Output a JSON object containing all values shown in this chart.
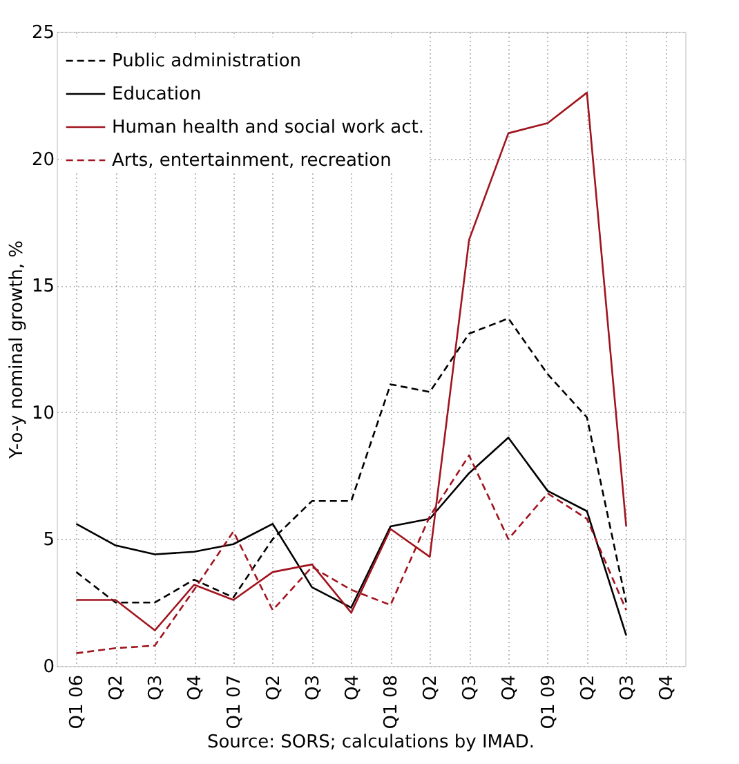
{
  "chart_data": {
    "type": "line",
    "ylabel": "Y-o-y nominal growth, %",
    "annotations": [
      "Source: SORS; calculations by IMAD."
    ],
    "categories": [
      "Q1 06",
      "Q2",
      "Q3",
      "Q4",
      "Q1 07",
      "Q2",
      "Q3",
      "Q4",
      "Q1 08",
      "Q2",
      "Q3",
      "Q4",
      "Q1 09",
      "Q2",
      "Q3",
      "Q4"
    ],
    "ylim": [
      0,
      25
    ],
    "yticks": [
      0,
      5,
      10,
      15,
      20,
      25
    ],
    "grid": true,
    "legend": "top left",
    "marker": "none",
    "series": [
      {
        "name": "Public administration",
        "color": "#000000",
        "line_style": "dashed",
        "values": [
          3.7,
          2.5,
          2.5,
          3.4,
          2.7,
          5.0,
          6.5,
          6.5,
          11.1,
          10.8,
          13.1,
          13.7,
          11.5,
          9.8,
          2.5,
          null
        ]
      },
      {
        "name": "Education",
        "color": "#000000",
        "line_style": "solid",
        "values": [
          5.6,
          4.75,
          4.4,
          4.5,
          4.8,
          5.6,
          3.1,
          2.3,
          5.5,
          5.8,
          7.6,
          9.0,
          6.9,
          6.1,
          1.2,
          null
        ]
      },
      {
        "name": "Human health and social work act.",
        "color": "#a0141e",
        "line_style": "solid",
        "values": [
          2.6,
          2.6,
          1.4,
          3.2,
          2.6,
          3.7,
          4.0,
          2.1,
          5.4,
          4.3,
          16.8,
          21.0,
          21.4,
          22.6,
          5.5,
          null
        ]
      },
      {
        "name": "Arts, entertainment, recreation",
        "color": "#a0141e",
        "line_style": "dashed",
        "values": [
          0.5,
          0.7,
          0.8,
          3.0,
          5.3,
          2.2,
          3.9,
          3.0,
          2.4,
          5.9,
          8.3,
          5.0,
          6.8,
          5.8,
          2.2,
          null
        ]
      }
    ]
  }
}
